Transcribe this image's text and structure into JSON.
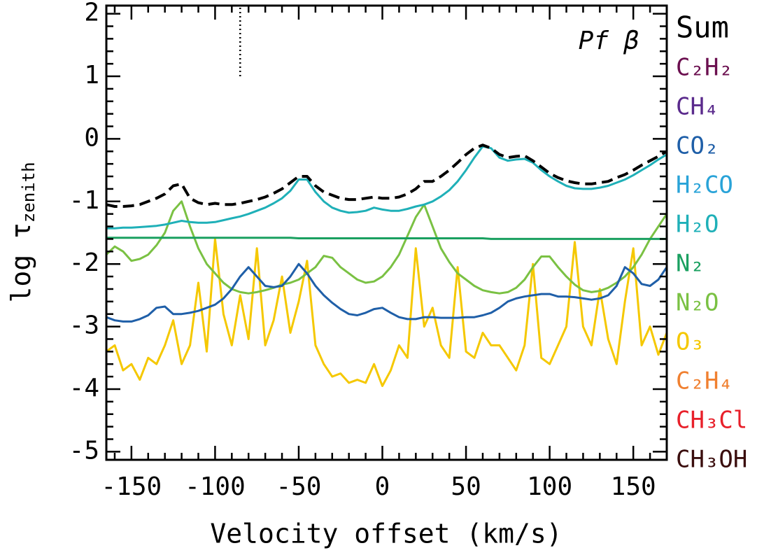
{
  "chart_data": {
    "type": "line",
    "annotation": "Pf β",
    "xlabel": "Velocity offset (km/s)",
    "ylabel": "log τ",
    "ylabel_sub": "zenith",
    "xlim": [
      -165,
      170
    ],
    "ylim": [
      -5.13,
      2.13
    ],
    "xticks": [
      -150,
      -100,
      -50,
      0,
      50,
      100,
      150
    ],
    "yticks": [
      -5,
      -4,
      -3,
      -2,
      -1,
      0,
      1,
      2
    ],
    "xminor_ticks": [
      -160,
      -140,
      -130,
      -120,
      -110,
      -90,
      -80,
      -70,
      -60,
      -40,
      -30,
      -20,
      -10,
      10,
      20,
      30,
      40,
      60,
      70,
      80,
      90,
      110,
      120,
      130,
      140,
      160,
      170
    ],
    "yminor_ticks": [
      -4.8,
      -4.6,
      -4.4,
      -4.2,
      -3.8,
      -3.6,
      -3.4,
      -3.2,
      -2.8,
      -2.6,
      -2.4,
      -2.2,
      -1.8,
      -1.6,
      -1.4,
      -1.2,
      -0.8,
      -0.6,
      -0.4,
      -0.2,
      0.2,
      0.4,
      0.6,
      0.8,
      1.2,
      1.4,
      1.6,
      1.8
    ],
    "marker_x": -85,
    "marker_ymin": 1,
    "x": [
      -165,
      -160,
      -155,
      -150,
      -145,
      -140,
      -135,
      -130,
      -125,
      -120,
      -115,
      -110,
      -105,
      -100,
      -95,
      -90,
      -85,
      -80,
      -75,
      -70,
      -65,
      -60,
      -55,
      -50,
      -45,
      -40,
      -35,
      -30,
      -25,
      -20,
      -15,
      -10,
      -5,
      0,
      5,
      10,
      15,
      20,
      25,
      30,
      35,
      40,
      45,
      50,
      55,
      60,
      65,
      70,
      75,
      80,
      85,
      90,
      95,
      100,
      105,
      110,
      115,
      120,
      125,
      130,
      135,
      140,
      145,
      150,
      155,
      160,
      165,
      170
    ],
    "series": [
      {
        "name": "Sum",
        "color": "#000000",
        "dashed": true,
        "values": [
          -1.05,
          -1.08,
          -1.08,
          -1.07,
          -1.05,
          -1.0,
          -0.95,
          -0.88,
          -0.75,
          -0.72,
          -0.95,
          -1.02,
          -1.05,
          -1.03,
          -1.05,
          -1.05,
          -1.03,
          -1.0,
          -0.97,
          -0.93,
          -0.87,
          -0.8,
          -0.7,
          -0.6,
          -0.6,
          -0.75,
          -0.85,
          -0.9,
          -0.95,
          -0.97,
          -0.97,
          -0.95,
          -0.93,
          -0.95,
          -0.95,
          -0.93,
          -0.88,
          -0.8,
          -0.68,
          -0.68,
          -0.6,
          -0.5,
          -0.38,
          -0.25,
          -0.15,
          -0.1,
          -0.15,
          -0.25,
          -0.3,
          -0.28,
          -0.27,
          -0.35,
          -0.45,
          -0.55,
          -0.62,
          -0.67,
          -0.7,
          -0.72,
          -0.72,
          -0.7,
          -0.68,
          -0.62,
          -0.57,
          -0.5,
          -0.42,
          -0.35,
          -0.28,
          -0.2
        ]
      },
      {
        "name": "C₂H₂",
        "color": "#6b0f4f",
        "values": [
          null,
          null,
          null,
          null,
          null,
          null,
          null,
          null,
          null,
          null,
          null,
          null,
          null,
          null,
          null,
          null,
          null,
          null,
          null,
          null,
          null,
          null,
          null,
          null,
          null,
          null,
          null,
          null,
          null,
          null,
          null,
          null,
          null,
          null,
          null,
          null,
          null,
          null,
          null,
          null,
          null,
          null,
          null,
          null,
          null,
          null,
          null,
          null,
          null,
          null,
          null,
          null,
          null,
          null,
          null,
          null,
          null,
          null,
          null,
          null,
          null,
          null,
          null,
          null,
          null,
          null,
          null,
          null
        ]
      },
      {
        "name": "CH₄",
        "color": "#5a2a8c",
        "values": [
          null,
          null,
          null,
          null,
          null,
          null,
          null,
          null,
          null,
          null,
          null,
          null,
          null,
          null,
          null,
          null,
          null,
          null,
          null,
          null,
          null,
          null,
          null,
          null,
          null,
          null,
          null,
          null,
          null,
          null,
          null,
          null,
          null,
          null,
          null,
          null,
          null,
          null,
          null,
          null,
          null,
          null,
          null,
          null,
          null,
          null,
          null,
          null,
          null,
          null,
          null,
          null,
          null,
          null,
          null,
          null,
          null,
          null,
          null,
          null,
          null,
          null,
          null,
          null,
          null,
          null,
          null,
          null
        ]
      },
      {
        "name": "CO₂",
        "color": "#1f5fa8",
        "values": [
          -2.85,
          -2.9,
          -2.92,
          -2.92,
          -2.88,
          -2.82,
          -2.7,
          -2.68,
          -2.8,
          -2.8,
          -2.78,
          -2.75,
          -2.7,
          -2.65,
          -2.55,
          -2.4,
          -2.2,
          -2.05,
          -2.2,
          -2.35,
          -2.37,
          -2.35,
          -2.2,
          -2.0,
          -2.15,
          -2.35,
          -2.5,
          -2.62,
          -2.72,
          -2.8,
          -2.82,
          -2.78,
          -2.72,
          -2.7,
          -2.78,
          -2.85,
          -2.88,
          -2.88,
          -2.85,
          -2.85,
          -2.86,
          -2.86,
          -2.86,
          -2.85,
          -2.85,
          -2.82,
          -2.78,
          -2.7,
          -2.6,
          -2.55,
          -2.52,
          -2.5,
          -2.48,
          -2.48,
          -2.52,
          -2.52,
          -2.53,
          -2.55,
          -2.57,
          -2.55,
          -2.5,
          -2.35,
          -2.05,
          -2.15,
          -2.32,
          -2.35,
          -2.25,
          -2.05
        ]
      },
      {
        "name": "H₂CO",
        "color": "#29a3d8",
        "values": [
          null,
          null,
          null,
          null,
          null,
          null,
          null,
          null,
          null,
          null,
          null,
          null,
          null,
          null,
          null,
          null,
          null,
          null,
          null,
          null,
          null,
          null,
          null,
          null,
          null,
          null,
          null,
          null,
          null,
          null,
          null,
          null,
          null,
          null,
          null,
          null,
          null,
          null,
          null,
          null,
          null,
          null,
          null,
          null,
          null,
          null,
          null,
          null,
          null,
          null,
          null,
          null,
          null,
          null,
          null,
          null,
          null,
          null,
          null,
          null,
          null,
          null,
          null,
          null,
          null,
          null,
          null,
          null
        ]
      },
      {
        "name": "H₂O",
        "color": "#1fb0b8",
        "values": [
          -1.43,
          -1.43,
          -1.42,
          -1.42,
          -1.41,
          -1.4,
          -1.39,
          -1.37,
          -1.34,
          -1.31,
          -1.33,
          -1.34,
          -1.34,
          -1.33,
          -1.3,
          -1.27,
          -1.24,
          -1.2,
          -1.15,
          -1.1,
          -1.03,
          -0.95,
          -0.83,
          -0.65,
          -0.65,
          -0.85,
          -1.0,
          -1.1,
          -1.15,
          -1.18,
          -1.17,
          -1.15,
          -1.1,
          -1.13,
          -1.15,
          -1.15,
          -1.12,
          -1.08,
          -1.05,
          -1.0,
          -0.92,
          -0.82,
          -0.68,
          -0.5,
          -0.3,
          -0.12,
          -0.15,
          -0.3,
          -0.35,
          -0.33,
          -0.32,
          -0.38,
          -0.5,
          -0.6,
          -0.68,
          -0.75,
          -0.79,
          -0.8,
          -0.8,
          -0.78,
          -0.75,
          -0.7,
          -0.65,
          -0.58,
          -0.5,
          -0.42,
          -0.33,
          -0.25
        ]
      },
      {
        "name": "N₂",
        "color": "#1aa060",
        "values": [
          -1.58,
          -1.58,
          -1.58,
          -1.58,
          -1.58,
          -1.58,
          -1.58,
          -1.58,
          -1.58,
          -1.58,
          -1.58,
          -1.58,
          -1.58,
          -1.58,
          -1.58,
          -1.58,
          -1.58,
          -1.58,
          -1.58,
          -1.58,
          -1.58,
          -1.58,
          -1.58,
          -1.59,
          -1.59,
          -1.59,
          -1.59,
          -1.59,
          -1.59,
          -1.59,
          -1.59,
          -1.59,
          -1.59,
          -1.59,
          -1.59,
          -1.59,
          -1.59,
          -1.59,
          -1.59,
          -1.59,
          -1.59,
          -1.59,
          -1.59,
          -1.59,
          -1.59,
          -1.59,
          -1.6,
          -1.6,
          -1.6,
          -1.6,
          -1.6,
          -1.6,
          -1.6,
          -1.6,
          -1.6,
          -1.6,
          -1.6,
          -1.6,
          -1.6,
          -1.6,
          -1.6,
          -1.6,
          -1.6,
          -1.6,
          -1.6,
          -1.6,
          -1.6,
          -1.6
        ]
      },
      {
        "name": "N₂O",
        "color": "#7ac143",
        "values": [
          -1.85,
          -1.72,
          -1.8,
          -1.95,
          -1.92,
          -1.85,
          -1.7,
          -1.5,
          -1.15,
          -1.0,
          -1.4,
          -1.75,
          -2.0,
          -2.15,
          -2.3,
          -2.4,
          -2.45,
          -2.47,
          -2.45,
          -2.42,
          -2.38,
          -2.33,
          -2.3,
          -2.25,
          -2.15,
          -2.05,
          -1.87,
          -1.9,
          -2.05,
          -2.15,
          -2.25,
          -2.3,
          -2.28,
          -2.2,
          -2.05,
          -1.85,
          -1.55,
          -1.25,
          -1.05,
          -1.4,
          -1.75,
          -1.97,
          -2.15,
          -2.25,
          -2.35,
          -2.42,
          -2.45,
          -2.47,
          -2.45,
          -2.38,
          -2.25,
          -2.05,
          -1.88,
          -1.88,
          -2.05,
          -2.2,
          -2.33,
          -2.42,
          -2.45,
          -2.43,
          -2.38,
          -2.3,
          -2.2,
          -2.05,
          -1.85,
          -1.6,
          -1.4,
          -1.2
        ]
      },
      {
        "name": "O₃",
        "color": "#f5c800",
        "values": [
          -3.4,
          -3.3,
          -3.7,
          -3.6,
          -3.85,
          -3.5,
          -3.6,
          -3.3,
          -2.9,
          -3.6,
          -3.3,
          -2.3,
          -3.4,
          -1.6,
          -2.8,
          -3.3,
          -2.5,
          -3.2,
          -1.75,
          -3.3,
          -2.9,
          -2.2,
          -3.1,
          -2.6,
          -1.95,
          -3.3,
          -3.6,
          -3.8,
          -3.75,
          -3.9,
          -3.85,
          -3.9,
          -3.6,
          -3.95,
          -3.7,
          -3.3,
          -3.5,
          -1.75,
          -3.0,
          -2.7,
          -3.3,
          -3.5,
          -2.05,
          -3.4,
          -3.5,
          -3.1,
          -3.3,
          -3.3,
          -3.5,
          -3.7,
          -3.3,
          -2.0,
          -3.5,
          -3.6,
          -3.3,
          -3.0,
          -1.65,
          -3.0,
          -3.3,
          -2.4,
          -3.2,
          -3.6,
          -2.6,
          -1.75,
          -3.3,
          -3.0,
          -3.45,
          -3.1
        ]
      },
      {
        "name": "C₂H₄",
        "color": "#f08030",
        "values": [
          null,
          null,
          null,
          null,
          null,
          null,
          null,
          null,
          null,
          null,
          null,
          null,
          null,
          null,
          null,
          null,
          null,
          null,
          null,
          null,
          null,
          null,
          null,
          null,
          null,
          null,
          null,
          null,
          null,
          null,
          null,
          null,
          null,
          null,
          null,
          null,
          null,
          null,
          null,
          null,
          null,
          null,
          null,
          null,
          null,
          null,
          null,
          null,
          null,
          null,
          null,
          null,
          null,
          null,
          null,
          null,
          null,
          null,
          null,
          null,
          null,
          null,
          null,
          null,
          null,
          null,
          null,
          null
        ]
      },
      {
        "name": "CH₃Cl",
        "color": "#e8202a",
        "values": [
          null,
          null,
          null,
          null,
          null,
          null,
          null,
          null,
          null,
          null,
          null,
          null,
          null,
          null,
          null,
          null,
          null,
          null,
          null,
          null,
          null,
          null,
          null,
          null,
          null,
          null,
          null,
          null,
          null,
          null,
          null,
          null,
          null,
          null,
          null,
          null,
          null,
          null,
          null,
          null,
          null,
          null,
          null,
          null,
          null,
          null,
          null,
          null,
          null,
          null,
          null,
          null,
          null,
          null,
          null,
          null,
          null,
          null,
          null,
          null,
          null,
          null,
          null,
          null,
          null,
          null,
          null,
          null
        ]
      },
      {
        "name": "CH₃OH",
        "color": "#3a0d0d",
        "values": [
          null,
          null,
          null,
          null,
          null,
          null,
          null,
          null,
          null,
          null,
          null,
          null,
          null,
          null,
          null,
          null,
          null,
          null,
          null,
          null,
          null,
          null,
          null,
          null,
          null,
          null,
          null,
          null,
          null,
          null,
          null,
          null,
          null,
          null,
          null,
          null,
          null,
          null,
          null,
          null,
          null,
          null,
          null,
          null,
          null,
          null,
          null,
          null,
          null,
          null,
          null,
          null,
          null,
          null,
          null,
          null,
          null,
          null,
          null,
          null,
          null,
          null,
          null,
          null,
          null,
          null,
          null,
          null
        ]
      }
    ]
  }
}
